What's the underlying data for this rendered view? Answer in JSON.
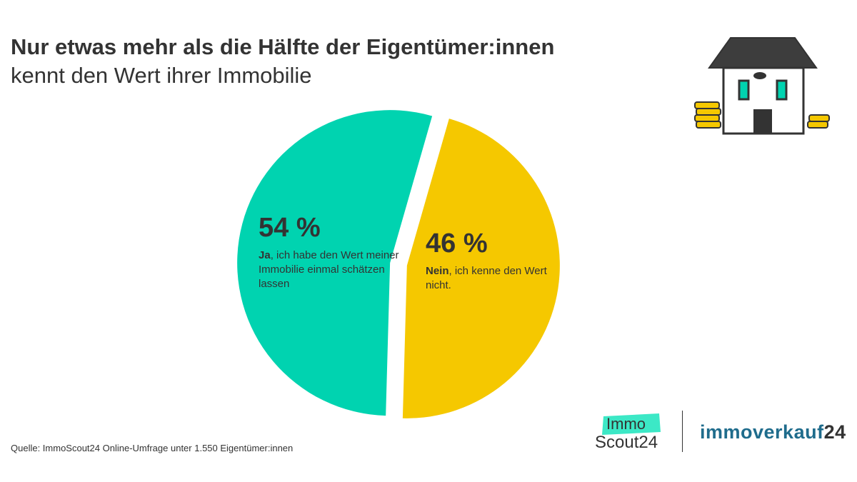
{
  "header": {
    "title_bold": "Nur etwas mehr als die Hälfte der Eigentümer:innen",
    "title_light": "kennt den Wert ihrer Immobilie"
  },
  "chart_data": {
    "type": "pie",
    "title": "Nur etwas mehr als die Hälfte der Eigentümer:innen kennt den Wert ihrer Immobilie",
    "unit": "%",
    "slices": [
      {
        "label": "Ja",
        "value": 54,
        "value_label": "54 %",
        "lead": "Ja",
        "text": ", ich habe den Wert meiner Immobilie einmal schätzen lassen",
        "color": "#00d3b0"
      },
      {
        "label": "Nein",
        "value": 46,
        "value_label": "46 %",
        "lead": "Nein",
        "text": ", ich kenne den Wert nicht.",
        "color": "#f5c800"
      }
    ]
  },
  "footer": {
    "source": "Quelle: ImmoScout24 Online-Umfrage unter 1.550 Eigentümer:innen"
  },
  "logos": {
    "immo": "Immo",
    "scout": "Scout24",
    "verkauf_word": "immoverkauf",
    "verkauf_num": "24",
    "immo_badge_color": "#3ce8c6",
    "verkauf_color": "#1f6c8c"
  }
}
